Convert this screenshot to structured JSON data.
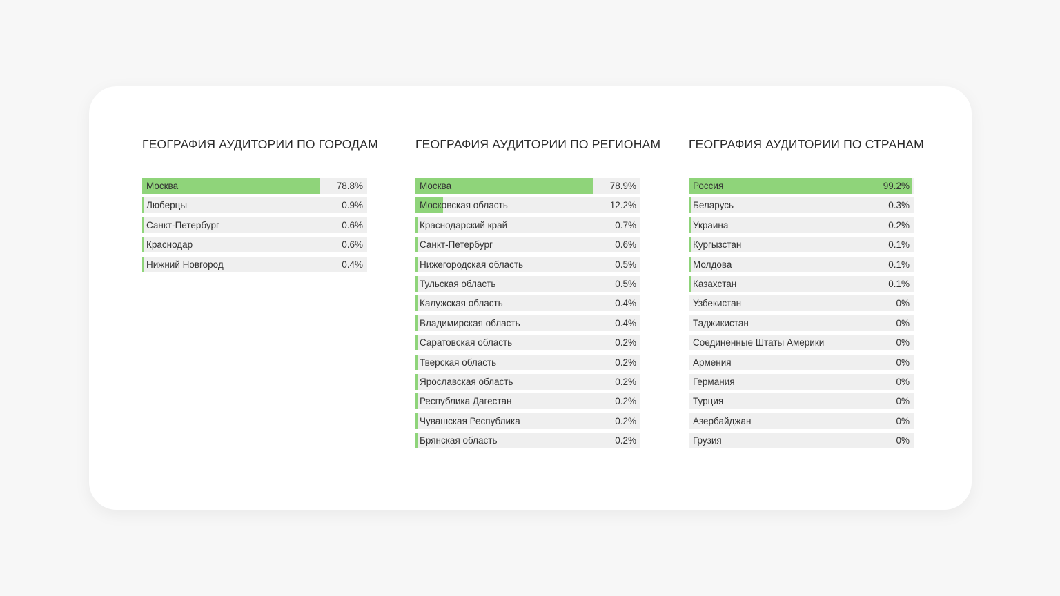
{
  "colors": {
    "bar_fill": "#8fd47a",
    "bar_track": "#efefef",
    "background": "#f7f7f7",
    "card": "#ffffff"
  },
  "chart_data": [
    {
      "type": "bar",
      "orientation": "horizontal",
      "title": "ГЕОГРАФИЯ АУДИТОРИИ ПО ГОРОДАМ",
      "categories": [
        "Москва",
        "Люберцы",
        "Санкт-Петербург",
        "Краснодар",
        "Нижний Новгород"
      ],
      "values": [
        78.8,
        0.9,
        0.6,
        0.6,
        0.4
      ],
      "value_labels": [
        "78.8%",
        "0.9%",
        "0.6%",
        "0.6%",
        "0.4%"
      ],
      "xlim": [
        0,
        100
      ],
      "unit": "%"
    },
    {
      "type": "bar",
      "orientation": "horizontal",
      "title": "ГЕОГРАФИЯ АУДИТОРИИ ПО РЕГИОНАМ",
      "categories": [
        "Москва",
        "Московская область",
        "Краснодарский край",
        "Санкт-Петербург",
        "Нижегородская область",
        "Тульская область",
        "Калужская область",
        "Владимирская область",
        "Саратовская область",
        "Тверская область",
        "Ярославская область",
        "Республика Дагестан",
        "Чувашская Республика",
        "Брянская область"
      ],
      "values": [
        78.9,
        12.2,
        0.7,
        0.6,
        0.5,
        0.5,
        0.4,
        0.4,
        0.2,
        0.2,
        0.2,
        0.2,
        0.2,
        0.2
      ],
      "value_labels": [
        "78.9%",
        "12.2%",
        "0.7%",
        "0.6%",
        "0.5%",
        "0.5%",
        "0.4%",
        "0.4%",
        "0.2%",
        "0.2%",
        "0.2%",
        "0.2%",
        "0.2%",
        "0.2%"
      ],
      "xlim": [
        0,
        100
      ],
      "unit": "%"
    },
    {
      "type": "bar",
      "orientation": "horizontal",
      "title": "ГЕОГРАФИЯ АУДИТОРИИ ПО СТРАНАМ",
      "categories": [
        "Россия",
        "Беларусь",
        "Украина",
        "Кургызстан",
        "Молдова",
        "Казахстан",
        "Узбекистан",
        "Таджикистан",
        "Соединенные Штаты Америки",
        "Армения",
        "Германия",
        "Турция",
        "Азербайджан",
        "Грузия"
      ],
      "values": [
        99.2,
        0.3,
        0.2,
        0.1,
        0.1,
        0.1,
        0,
        0,
        0,
        0,
        0,
        0,
        0,
        0
      ],
      "value_labels": [
        "99.2%",
        "0.3%",
        "0.2%",
        "0.1%",
        "0.1%",
        "0.1%",
        "0%",
        "0%",
        "0%",
        "0%",
        "0%",
        "0%",
        "0%",
        "0%"
      ],
      "xlim": [
        0,
        100
      ],
      "unit": "%"
    }
  ]
}
